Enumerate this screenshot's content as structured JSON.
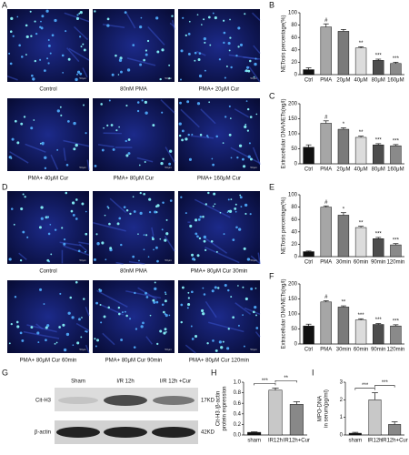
{
  "panel_labels": [
    "A",
    "B",
    "C",
    "D",
    "E",
    "F",
    "G",
    "H",
    "I"
  ],
  "micrographs_a": [
    "Control",
    "80nM PMA",
    "PMA+ 20μM Cur",
    "PMA+ 40μM Cur",
    "PMA+ 80μM Cur",
    "PMA+ 160μM Cur"
  ],
  "micrographs_d": [
    "Control",
    "80nM PMA",
    "PMA+ 80μM Cur 30min",
    "PMA+ 80μM Cur 60min",
    "PMA+ 80μM Cur 90min",
    "PMA+ 80μM Cur 120min"
  ],
  "scale_bar": "50μm",
  "blot": {
    "lanes": [
      "Sham",
      "I/R 12h",
      "I/R 12h +Cur"
    ],
    "rows": [
      {
        "label": "Cit-H3",
        "size": "17KD"
      },
      {
        "label": "β-actin",
        "size": "42KD"
      }
    ]
  },
  "chart_data": [
    {
      "type": "bar",
      "ylabel": "NETosis percentage(%)",
      "categories": [
        "Ctrl",
        "PMA",
        "20μM",
        "40μM",
        "80μM",
        "160μM"
      ],
      "values": [
        8,
        77,
        70,
        43,
        23,
        18
      ],
      "errors": [
        3,
        5,
        3,
        2,
        2,
        2
      ],
      "annotations": [
        null,
        "#",
        null,
        "**",
        "***",
        "***"
      ],
      "colors": [
        "#111111",
        "#a6a6a6",
        "#7a7a7a",
        "#dcdcdc",
        "#4d4d4d",
        "#8a8a8a"
      ],
      "ylim": [
        0,
        100
      ],
      "yticks": [
        0,
        20,
        40,
        60,
        80,
        100
      ]
    },
    {
      "type": "bar",
      "ylabel": "Extracellular DNA/NETs(ng/l)",
      "categories": [
        "Ctrl",
        "PMA",
        "20μM",
        "40μM",
        "80μM",
        "160μM"
      ],
      "values": [
        55,
        135,
        115,
        88,
        63,
        60
      ],
      "errors": [
        8,
        8,
        5,
        4,
        4,
        4
      ],
      "annotations": [
        null,
        "#",
        "*",
        "**",
        "***",
        "***"
      ],
      "colors": [
        "#111111",
        "#a6a6a6",
        "#7a7a7a",
        "#dcdcdc",
        "#4d4d4d",
        "#8a8a8a"
      ],
      "ylim": [
        0,
        200
      ],
      "yticks": [
        0,
        50,
        100,
        150,
        200
      ]
    },
    {
      "type": "bar",
      "ylabel": "NETosis percentage(%)",
      "categories": [
        "Ctrl",
        "PMA",
        "30min",
        "60min",
        "90min",
        "120min"
      ],
      "values": [
        8,
        80,
        67,
        47,
        29,
        19
      ],
      "errors": [
        1,
        2,
        4,
        2,
        2,
        2
      ],
      "annotations": [
        null,
        "#",
        "*",
        "**",
        "***",
        "***"
      ],
      "colors": [
        "#111111",
        "#a6a6a6",
        "#7a7a7a",
        "#dcdcdc",
        "#4d4d4d",
        "#8a8a8a"
      ],
      "ylim": [
        0,
        100
      ],
      "yticks": [
        0,
        20,
        40,
        60,
        80,
        100
      ]
    },
    {
      "type": "bar",
      "ylabel": "Extracellular DNA/NETs(ng/l)",
      "categories": [
        "Ctrl",
        "PMA",
        "30min",
        "60min",
        "90min",
        "120min"
      ],
      "values": [
        60,
        140,
        123,
        80,
        65,
        60
      ],
      "errors": [
        6,
        4,
        4,
        4,
        3,
        4
      ],
      "annotations": [
        null,
        "#",
        "**",
        "***",
        "***",
        "***"
      ],
      "colors": [
        "#111111",
        "#a6a6a6",
        "#7a7a7a",
        "#dcdcdc",
        "#4d4d4d",
        "#8a8a8a"
      ],
      "ylim": [
        0,
        200
      ],
      "yticks": [
        0,
        50,
        100,
        150,
        200
      ]
    },
    {
      "type": "bar",
      "ylabel": [
        "Cit-H3 /β-actin",
        "protein expression"
      ],
      "categories": [
        "sham",
        "IR12h",
        "IR12h+Cur"
      ],
      "values": [
        0.05,
        0.85,
        0.58
      ],
      "errors": [
        0.01,
        0.04,
        0.05
      ],
      "colors": [
        "#111111",
        "#c8c8c8",
        "#888888"
      ],
      "comparisons": [
        {
          "from": "sham",
          "to": "IR12h",
          "label": "***"
        },
        {
          "from": "IR12h",
          "to": "IR12h+Cur",
          "label": "**"
        }
      ],
      "ylim": [
        0,
        1.0
      ],
      "yticks": [
        {
          "value": 0,
          "label": "0.0"
        },
        0.2,
        0.4,
        0.6,
        0.8,
        {
          "value": 1,
          "label": "1.0"
        }
      ]
    },
    {
      "type": "bar",
      "ylabel": [
        "MPO-DNA",
        "in serum(pg/ml)"
      ],
      "categories": [
        "sham",
        "IR12h",
        "IR12h+Cur"
      ],
      "values": [
        0.1,
        2.0,
        0.6
      ],
      "errors": [
        0.05,
        0.4,
        0.15
      ],
      "colors": [
        "#111111",
        "#c8c8c8",
        "#888888"
      ],
      "comparisons": [
        {
          "from": "sham",
          "to": "IR12h",
          "label": "***"
        },
        {
          "from": "IR12h",
          "to": "IR12h+Cur",
          "label": "***"
        }
      ],
      "ylim": [
        0,
        3
      ],
      "yticks": [
        0,
        1,
        2,
        3
      ]
    }
  ]
}
